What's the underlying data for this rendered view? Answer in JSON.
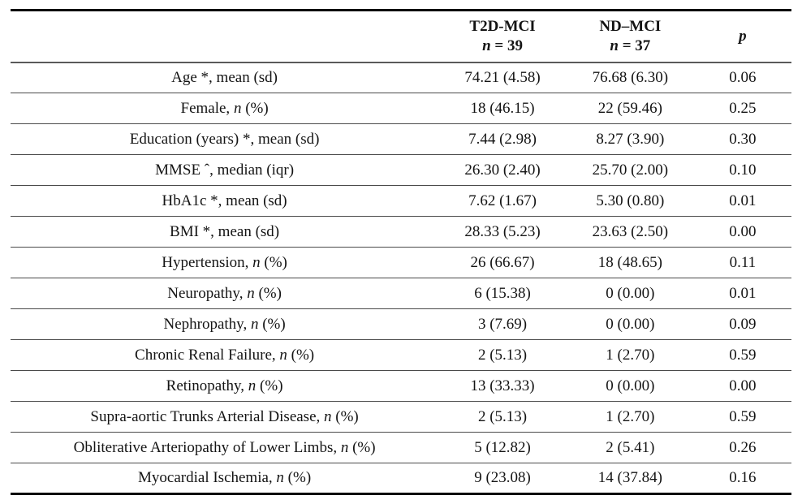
{
  "table": {
    "header": {
      "characteristic": "",
      "t2d": {
        "line1": "T2D-MCI",
        "line2_parts": [
          {
            "i": "n"
          },
          {
            "t": " = 39"
          }
        ]
      },
      "nd": {
        "line1": "ND–MCI",
        "line2_parts": [
          {
            "i": "n"
          },
          {
            "t": " = 37"
          }
        ]
      },
      "p_parts": [
        {
          "i": "p"
        }
      ]
    },
    "rows": [
      {
        "label_parts": [
          {
            "t": "Age *, mean (sd)"
          }
        ],
        "t2d": "74.21 (4.58)",
        "nd": "76.68 (6.30)",
        "p": "0.06"
      },
      {
        "label_parts": [
          {
            "t": "Female, "
          },
          {
            "i": "n"
          },
          {
            "t": " (%)"
          }
        ],
        "t2d": "18 (46.15)",
        "nd": "22 (59.46)",
        "p": "0.25"
      },
      {
        "label_parts": [
          {
            "t": "Education (years) *, mean (sd)"
          }
        ],
        "t2d": "7.44 (2.98)",
        "nd": "8.27 (3.90)",
        "p": "0.30"
      },
      {
        "label_parts": [
          {
            "t": "MMSE ˆ, median (iqr)"
          }
        ],
        "t2d": "26.30 (2.40)",
        "nd": "25.70 (2.00)",
        "p": "0.10"
      },
      {
        "label_parts": [
          {
            "t": "HbA1c *, mean (sd)"
          }
        ],
        "t2d": "7.62 (1.67)",
        "nd": "5.30 (0.80)",
        "p": "0.01"
      },
      {
        "label_parts": [
          {
            "t": "BMI *, mean (sd)"
          }
        ],
        "t2d": "28.33 (5.23)",
        "nd": "23.63 (2.50)",
        "p": "0.00"
      },
      {
        "label_parts": [
          {
            "t": "Hypertension, "
          },
          {
            "i": "n"
          },
          {
            "t": " (%)"
          }
        ],
        "t2d": "26 (66.67)",
        "nd": "18 (48.65)",
        "p": "0.11"
      },
      {
        "label_parts": [
          {
            "t": "Neuropathy, "
          },
          {
            "i": "n"
          },
          {
            "t": " (%)"
          }
        ],
        "t2d": "6 (15.38)",
        "nd": "0 (0.00)",
        "p": "0.01"
      },
      {
        "label_parts": [
          {
            "t": "Nephropathy, "
          },
          {
            "i": "n"
          },
          {
            "t": " (%)"
          }
        ],
        "t2d": "3 (7.69)",
        "nd": "0 (0.00)",
        "p": "0.09"
      },
      {
        "label_parts": [
          {
            "t": "Chronic Renal Failure, "
          },
          {
            "i": "n"
          },
          {
            "t": " (%)"
          }
        ],
        "t2d": "2 (5.13)",
        "nd": "1 (2.70)",
        "p": "0.59"
      },
      {
        "label_parts": [
          {
            "t": "Retinopathy, "
          },
          {
            "i": "n"
          },
          {
            "t": " (%)"
          }
        ],
        "t2d": "13 (33.33)",
        "nd": "0 (0.00)",
        "p": "0.00"
      },
      {
        "label_parts": [
          {
            "t": "Supra-aortic Trunks Arterial Disease, "
          },
          {
            "i": "n"
          },
          {
            "t": " (%)"
          }
        ],
        "t2d": "2 (5.13)",
        "nd": "1 (2.70)",
        "p": "0.59"
      },
      {
        "label_parts": [
          {
            "t": "Obliterative Arteriopathy of Lower Limbs, "
          },
          {
            "i": "n"
          },
          {
            "t": " (%)"
          }
        ],
        "t2d": "5 (12.82)",
        "nd": "2 (5.41)",
        "p": "0.26"
      },
      {
        "label_parts": [
          {
            "t": "Myocardial Ischemia, "
          },
          {
            "i": "n"
          },
          {
            "t": " (%)"
          }
        ],
        "t2d": "9 (23.08)",
        "nd": "14 (37.84)",
        "p": "0.16"
      }
    ]
  }
}
